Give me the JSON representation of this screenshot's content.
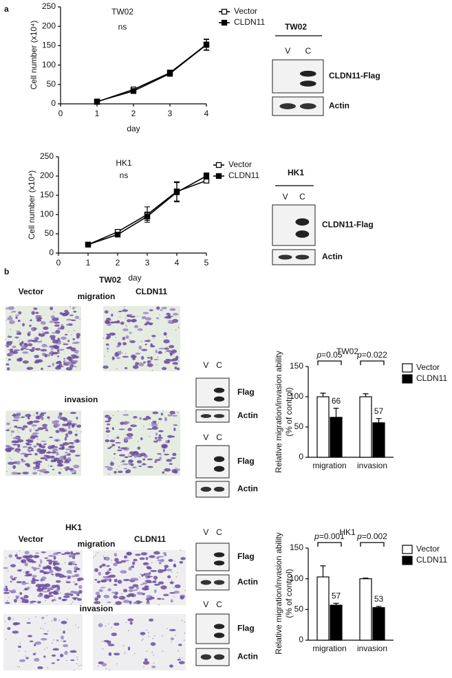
{
  "chart_data": [
    {
      "type": "line",
      "title": "TW02",
      "subtitle": "ns",
      "xlabel": "day",
      "ylabel": "Cell number (x10⁴)",
      "x": [
        1,
        2,
        3,
        4
      ],
      "xlim": [
        0,
        4
      ],
      "xticks": [
        0,
        1,
        2,
        3,
        4
      ],
      "ylim": [
        0,
        250
      ],
      "yticks": [
        0,
        50,
        100,
        150,
        200,
        250
      ],
      "series": [
        {
          "name": "Vector",
          "color": "#000000",
          "marker": "open",
          "values": [
            5,
            37,
            80,
            153
          ],
          "errors": [
            2,
            5,
            7,
            14
          ]
        },
        {
          "name": "CLDN11",
          "color": "#000000",
          "marker": "filled",
          "values": [
            6,
            33,
            78,
            152
          ],
          "errors": [
            2,
            5,
            7,
            14
          ]
        }
      ]
    },
    {
      "type": "line",
      "title": "HK1",
      "subtitle": "ns",
      "xlabel": "day",
      "ylabel": "Cell number (x10⁴)",
      "x": [
        1,
        2,
        3,
        4,
        5
      ],
      "xlim": [
        0,
        5
      ],
      "xticks": [
        0,
        1,
        2,
        3,
        4,
        5
      ],
      "ylim": [
        0,
        250
      ],
      "yticks": [
        0,
        50,
        100,
        150,
        200,
        250
      ],
      "series": [
        {
          "name": "Vector",
          "color": "#000000",
          "marker": "open",
          "values": [
            22,
            55,
            100,
            160,
            188
          ],
          "errors": [
            2,
            4,
            20,
            25,
            5
          ]
        },
        {
          "name": "CLDN11",
          "color": "#000000",
          "marker": "filled",
          "values": [
            22,
            48,
            95,
            158,
            200
          ],
          "errors": [
            2,
            4,
            10,
            25,
            8
          ]
        }
      ]
    },
    {
      "type": "bar",
      "title": "TW02",
      "ylabel": [
        "Relative migration/invasion ability",
        "(% of control)"
      ],
      "categories": [
        "migration",
        "invasion"
      ],
      "ylim": [
        0,
        150
      ],
      "yticks": [
        0,
        50,
        100,
        150
      ],
      "annotations": [
        "p=0.05",
        "p=0.022"
      ],
      "series": [
        {
          "name": "Vector",
          "color": "#ffffff",
          "values": [
            100,
            100
          ],
          "errors": [
            6,
            5
          ],
          "show_values": false
        },
        {
          "name": "CLDN11",
          "color": "#000000",
          "values": [
            66,
            57
          ],
          "errors": [
            15,
            7
          ],
          "show_values": true
        }
      ]
    },
    {
      "type": "bar",
      "title": "HK1",
      "ylabel": [
        "Relative migration/invasion ability",
        "(% of control)"
      ],
      "categories": [
        "migration",
        "invasion"
      ],
      "ylim": [
        0,
        150
      ],
      "yticks": [
        0,
        50,
        100,
        150
      ],
      "annotations": [
        "p=0.001",
        "p=0.002"
      ],
      "series": [
        {
          "name": "Vector",
          "color": "#ffffff",
          "values": [
            103,
            100
          ],
          "errors": [
            18,
            1
          ],
          "show_values": false
        },
        {
          "name": "CLDN11",
          "color": "#000000",
          "values": [
            57,
            53
          ],
          "errors": [
            3,
            2
          ],
          "show_values": true
        }
      ]
    }
  ],
  "figure": {
    "panel_labels": [
      "a",
      "b"
    ],
    "blots": [
      {
        "title": "TW02",
        "lanes": [
          "V",
          "C"
        ],
        "bands": [
          "CLDN11-Flag",
          "Actin"
        ]
      },
      {
        "title": "HK1",
        "lanes": [
          "V",
          "C"
        ],
        "bands": [
          "CLDN11-Flag",
          "Actin"
        ]
      },
      {
        "lanes": [
          "V",
          "C"
        ],
        "bands": [
          "Flag",
          "Actin"
        ]
      },
      {
        "lanes": [
          "V",
          "C"
        ],
        "bands": [
          "Flag",
          "Actin"
        ]
      },
      {
        "lanes": [
          "V",
          "C"
        ],
        "bands": [
          "Flag",
          "Actin"
        ]
      },
      {
        "lanes": [
          "V",
          "C"
        ],
        "bands": [
          "Flag",
          "Actin"
        ]
      }
    ],
    "micrographs": [
      {
        "title": "TW02",
        "columns": [
          "Vector",
          "CLDN11"
        ],
        "rows": [
          "migration",
          "invasion"
        ]
      },
      {
        "title": "HK1",
        "columns": [
          "Vector",
          "CLDN11"
        ],
        "rows": [
          "migration",
          "invasion"
        ]
      }
    ]
  }
}
